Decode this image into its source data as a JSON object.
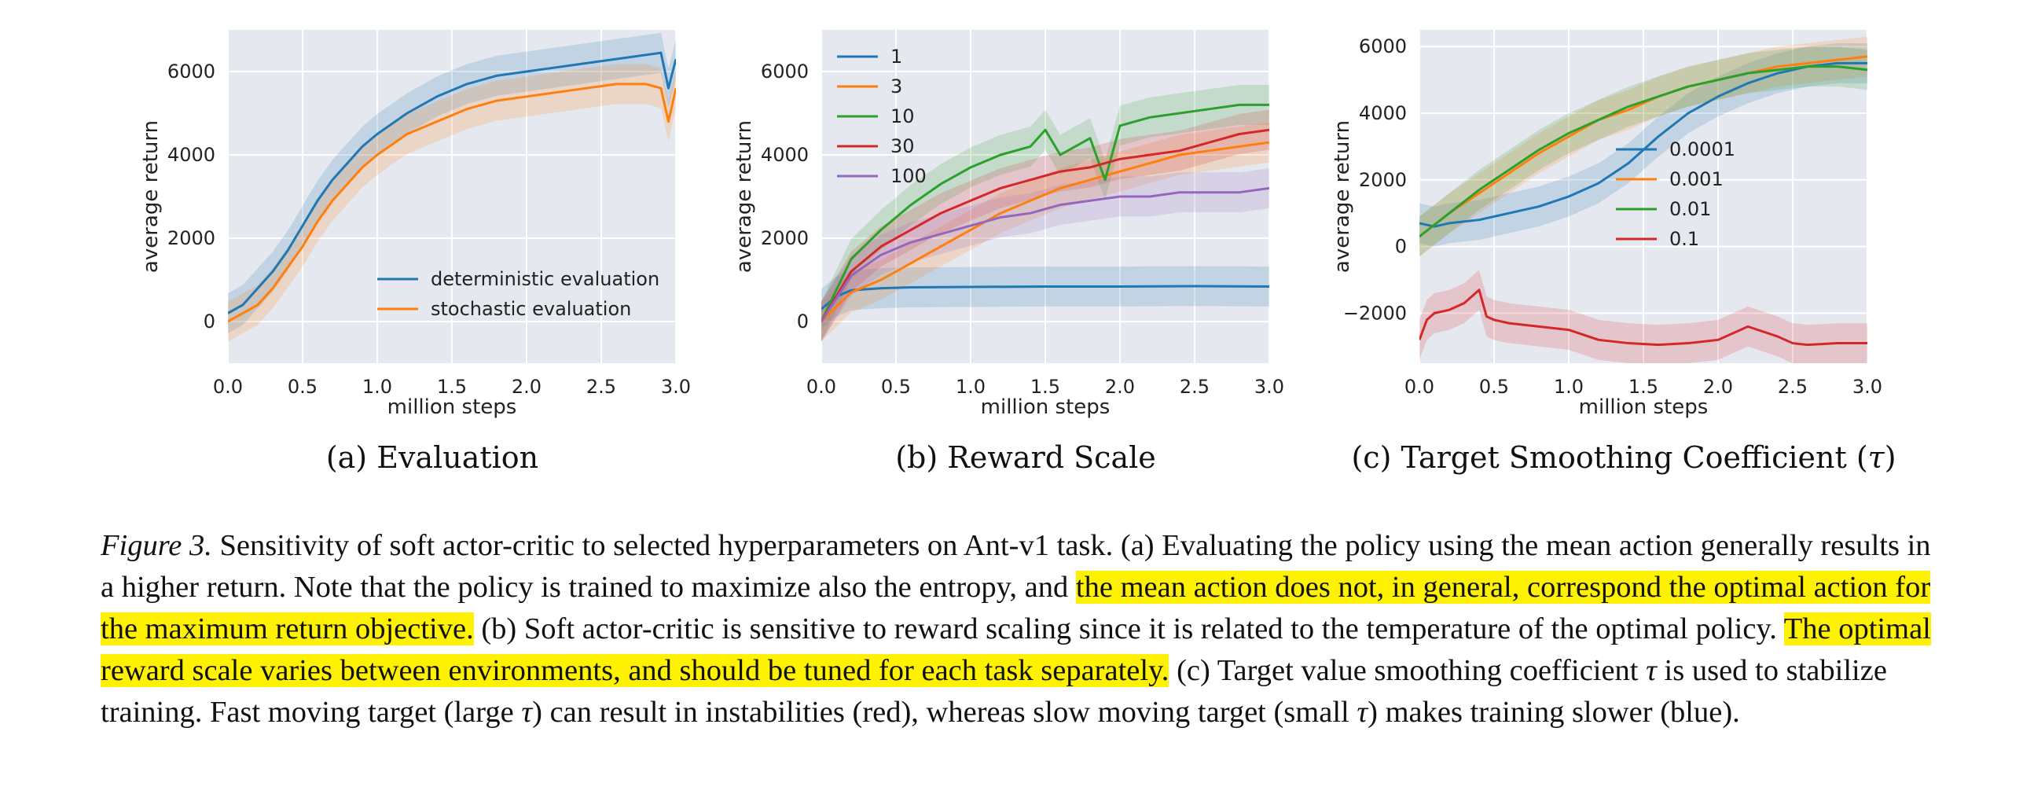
{
  "chart_data": [
    {
      "type": "line",
      "subcaption": {
        "label": "(a)",
        "text": "Evaluation"
      },
      "xlabel": "million steps",
      "ylabel": "average return",
      "xlim": [
        0.0,
        3.0
      ],
      "ylim": [
        -1000,
        7000
      ],
      "xticks": [
        "0.0",
        "0.5",
        "1.0",
        "1.5",
        "2.0",
        "2.5",
        "3.0"
      ],
      "yticks": [
        "0",
        "2000",
        "4000",
        "6000"
      ],
      "grid": true,
      "legend": "lower-right",
      "series": [
        {
          "name": "deterministic evaluation",
          "color": "#1f77b4",
          "x": [
            0,
            0.1,
            0.2,
            0.3,
            0.4,
            0.5,
            0.6,
            0.7,
            0.8,
            0.9,
            1.0,
            1.2,
            1.4,
            1.6,
            1.8,
            2.0,
            2.2,
            2.4,
            2.6,
            2.8,
            2.9,
            2.95,
            3.0
          ],
          "y": [
            200,
            400,
            800,
            1200,
            1700,
            2300,
            2900,
            3400,
            3800,
            4200,
            4500,
            5000,
            5400,
            5700,
            5900,
            6000,
            6100,
            6200,
            6300,
            6400,
            6450,
            5600,
            6300
          ]
        },
        {
          "name": "stochastic evaluation",
          "color": "#ff7f0e",
          "x": [
            0,
            0.1,
            0.2,
            0.3,
            0.4,
            0.5,
            0.6,
            0.7,
            0.8,
            0.9,
            1.0,
            1.2,
            1.4,
            1.6,
            1.8,
            2.0,
            2.2,
            2.4,
            2.6,
            2.8,
            2.9,
            2.95,
            3.0
          ],
          "y": [
            0,
            200,
            400,
            800,
            1300,
            1800,
            2400,
            2900,
            3300,
            3700,
            4000,
            4500,
            4800,
            5100,
            5300,
            5400,
            5500,
            5600,
            5700,
            5700,
            5600,
            4800,
            5600
          ]
        }
      ]
    },
    {
      "type": "line",
      "subcaption": {
        "label": "(b)",
        "text": "Reward Scale"
      },
      "xlabel": "million steps",
      "ylabel": "average return",
      "xlim": [
        0.0,
        3.0
      ],
      "ylim": [
        -1000,
        7000
      ],
      "xticks": [
        "0.0",
        "0.5",
        "1.0",
        "1.5",
        "2.0",
        "2.5",
        "3.0"
      ],
      "yticks": [
        "0",
        "2000",
        "4000",
        "6000"
      ],
      "grid": true,
      "legend": "top-left",
      "series": [
        {
          "name": "1",
          "color": "#1f77b4",
          "x": [
            0,
            0.1,
            0.2,
            0.4,
            0.6,
            1.0,
            1.5,
            2.0,
            2.5,
            3.0
          ],
          "y": [
            300,
            600,
            750,
            800,
            820,
            830,
            840,
            840,
            850,
            840
          ]
        },
        {
          "name": "3",
          "color": "#ff7f0e",
          "x": [
            0,
            0.2,
            0.4,
            0.6,
            0.8,
            1.0,
            1.2,
            1.4,
            1.6,
            1.8,
            2.0,
            2.2,
            2.4,
            2.6,
            2.8,
            3.0
          ],
          "y": [
            0,
            700,
            1000,
            1400,
            1800,
            2200,
            2600,
            2900,
            3200,
            3400,
            3600,
            3800,
            4000,
            4100,
            4200,
            4300
          ]
        },
        {
          "name": "10",
          "color": "#2ca02c",
          "x": [
            0,
            0.2,
            0.4,
            0.6,
            0.8,
            1.0,
            1.2,
            1.4,
            1.5,
            1.6,
            1.8,
            1.9,
            2.0,
            2.2,
            2.4,
            2.6,
            2.8,
            3.0
          ],
          "y": [
            0,
            1500,
            2200,
            2800,
            3300,
            3700,
            4000,
            4200,
            4600,
            4000,
            4400,
            3400,
            4700,
            4900,
            5000,
            5100,
            5200,
            5200
          ]
        },
        {
          "name": "30",
          "color": "#d62728",
          "x": [
            0,
            0.2,
            0.4,
            0.6,
            0.8,
            1.0,
            1.2,
            1.4,
            1.6,
            1.8,
            2.0,
            2.2,
            2.4,
            2.6,
            2.8,
            3.0
          ],
          "y": [
            0,
            1200,
            1800,
            2200,
            2600,
            2900,
            3200,
            3400,
            3600,
            3700,
            3900,
            4000,
            4100,
            4300,
            4500,
            4600
          ]
        },
        {
          "name": "100",
          "color": "#9467bd",
          "x": [
            0,
            0.2,
            0.4,
            0.6,
            0.8,
            1.0,
            1.2,
            1.4,
            1.6,
            1.8,
            2.0,
            2.2,
            2.4,
            2.6,
            2.8,
            3.0
          ],
          "y": [
            0,
            1100,
            1600,
            1900,
            2100,
            2300,
            2500,
            2600,
            2800,
            2900,
            3000,
            3000,
            3100,
            3100,
            3100,
            3200
          ]
        }
      ]
    },
    {
      "type": "line",
      "subcaption": {
        "label": "(c)",
        "text": "Target Smoothing Coefficient (",
        "symbol": "τ",
        "suffix": ")"
      },
      "xlabel": "million steps",
      "ylabel": "average return",
      "xlim": [
        0.0,
        3.0
      ],
      "ylim": [
        -3500,
        6500
      ],
      "xticks": [
        "0.0",
        "0.5",
        "1.0",
        "1.5",
        "2.0",
        "2.5",
        "3.0"
      ],
      "yticks": [
        "−2000",
        "0",
        "2000",
        "4000",
        "6000"
      ],
      "grid": true,
      "legend": "center-right",
      "series": [
        {
          "name": "0.0001",
          "color": "#1f77b4",
          "x": [
            0,
            0.1,
            0.2,
            0.4,
            0.6,
            0.8,
            1.0,
            1.2,
            1.4,
            1.6,
            1.8,
            2.0,
            2.2,
            2.4,
            2.6,
            2.8,
            3.0
          ],
          "y": [
            700,
            600,
            700,
            800,
            1000,
            1200,
            1500,
            1900,
            2500,
            3300,
            4000,
            4500,
            4900,
            5200,
            5400,
            5500,
            5500
          ]
        },
        {
          "name": "0.001",
          "color": "#ff7f0e",
          "x": [
            0,
            0.2,
            0.4,
            0.6,
            0.8,
            1.0,
            1.2,
            1.4,
            1.6,
            1.8,
            2.0,
            2.2,
            2.4,
            2.6,
            2.8,
            3.0
          ],
          "y": [
            300,
            1000,
            1600,
            2200,
            2800,
            3300,
            3800,
            4100,
            4500,
            4800,
            5000,
            5200,
            5400,
            5500,
            5600,
            5700
          ]
        },
        {
          "name": "0.01",
          "color": "#2ca02c",
          "x": [
            0,
            0.2,
            0.4,
            0.6,
            0.8,
            1.0,
            1.2,
            1.4,
            1.6,
            1.8,
            2.0,
            2.2,
            2.4,
            2.6,
            2.8,
            3.0
          ],
          "y": [
            300,
            1000,
            1700,
            2300,
            2900,
            3400,
            3800,
            4200,
            4500,
            4800,
            5000,
            5200,
            5300,
            5400,
            5400,
            5300
          ]
        },
        {
          "name": "0.1",
          "color": "#d62728",
          "x": [
            0,
            0.05,
            0.1,
            0.2,
            0.3,
            0.4,
            0.45,
            0.5,
            0.6,
            0.8,
            1.0,
            1.2,
            1.4,
            1.6,
            1.8,
            2.0,
            2.2,
            2.4,
            2.5,
            2.6,
            2.8,
            3.0
          ],
          "y": [
            -2800,
            -2200,
            -2000,
            -1900,
            -1700,
            -1300,
            -2100,
            -2200,
            -2300,
            -2400,
            -2500,
            -2800,
            -2900,
            -2950,
            -2900,
            -2800,
            -2400,
            -2700,
            -2900,
            -2950,
            -2900,
            -2900
          ]
        }
      ]
    }
  ],
  "caption": {
    "label": "Figure 3.",
    "seg1": " Sensitivity of soft actor-critic to selected hyperparameters on Ant-v1 task. (a) Evaluating the policy using the mean action generally results in a higher return. Note that the policy is trained to maximize also the entropy, and ",
    "hl1": "the mean action does not, in general, correspond the optimal action for the maximum return objective.",
    "seg2": " (b) Soft actor-critic is sensitive to reward scaling since it is related to the temperature of the optimal policy. ",
    "hl2": "The optimal reward scale varies between environments, and should be tuned for each task separately.",
    "seg3": " (c) Target value smoothing coefficient ",
    "tau": "τ",
    "seg4": " is used to stabilize training. Fast moving target (large ",
    "seg5": ") can result in instabilities (red), whereas slow moving target (small ",
    "seg6": ") makes training slower (blue)."
  }
}
